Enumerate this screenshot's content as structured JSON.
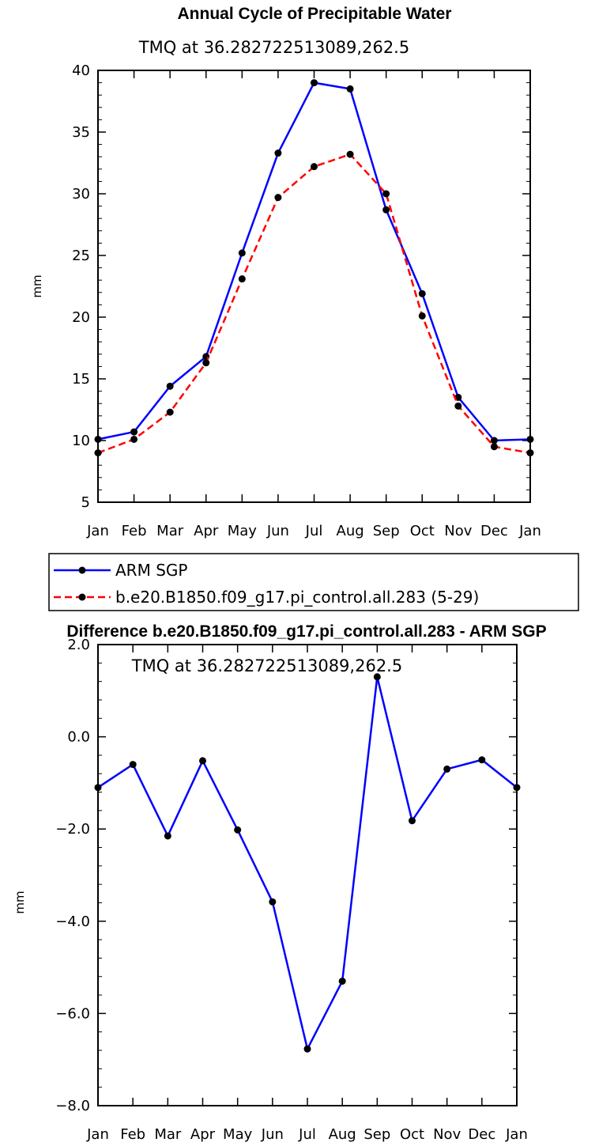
{
  "chart_data": [
    {
      "type": "line",
      "title": "Annual Cycle of Precipitable Water",
      "subtitle": "TMQ at 36.282722513089,262.5",
      "xlabel": "",
      "ylabel": "mm",
      "categories": [
        "Jan",
        "Feb",
        "Mar",
        "Apr",
        "May",
        "Jun",
        "Jul",
        "Aug",
        "Sep",
        "Oct",
        "Nov",
        "Dec",
        "Jan"
      ],
      "ylim": [
        5,
        40
      ],
      "yticks": [
        5,
        10,
        15,
        20,
        25,
        30,
        35,
        40
      ],
      "yticklabels": [
        "5",
        "10",
        "15",
        "20",
        "25",
        "30",
        "35",
        "40"
      ],
      "grid": false,
      "legend_position": "bottom",
      "series": [
        {
          "name": "ARM SGP",
          "color": "#0000ff",
          "dash": "solid",
          "values": [
            10.1,
            10.7,
            14.4,
            16.8,
            25.2,
            33.3,
            39.0,
            38.5,
            28.7,
            21.9,
            13.5,
            10.0,
            10.1
          ]
        },
        {
          "name": "b.e20.B1850.f09_g17.pi_control.all.283 (5-29)",
          "color": "#ff0000",
          "dash": "dashed",
          "values": [
            9.0,
            10.1,
            12.3,
            16.3,
            23.1,
            29.7,
            32.2,
            33.2,
            30.0,
            20.1,
            12.8,
            9.5,
            9.0
          ]
        }
      ]
    },
    {
      "type": "line",
      "title": "Difference b.e20.B1850.f09_g17.pi_control.all.283 - ARM SGP",
      "subtitle": "TMQ at 36.282722513089,262.5",
      "xlabel": "",
      "ylabel": "mm",
      "categories": [
        "Jan",
        "Feb",
        "Mar",
        "Apr",
        "May",
        "Jun",
        "Jul",
        "Aug",
        "Sep",
        "Oct",
        "Nov",
        "Dec",
        "Jan"
      ],
      "ylim": [
        -8.0,
        2.0
      ],
      "yticks": [
        -8.0,
        -6.0,
        -4.0,
        -2.0,
        0.0,
        2.0
      ],
      "yticklabels": [
        "−8.0",
        "−6.0",
        "−4.0",
        "−2.0",
        "0.0",
        "2.0"
      ],
      "grid": false,
      "series": [
        {
          "color": "#0000ff",
          "dash": "solid",
          "values": [
            -1.1,
            -0.6,
            -2.15,
            -0.52,
            -2.02,
            -3.58,
            -6.77,
            -5.3,
            1.3,
            -1.82,
            -0.7,
            -0.5,
            -1.1
          ]
        }
      ]
    }
  ]
}
